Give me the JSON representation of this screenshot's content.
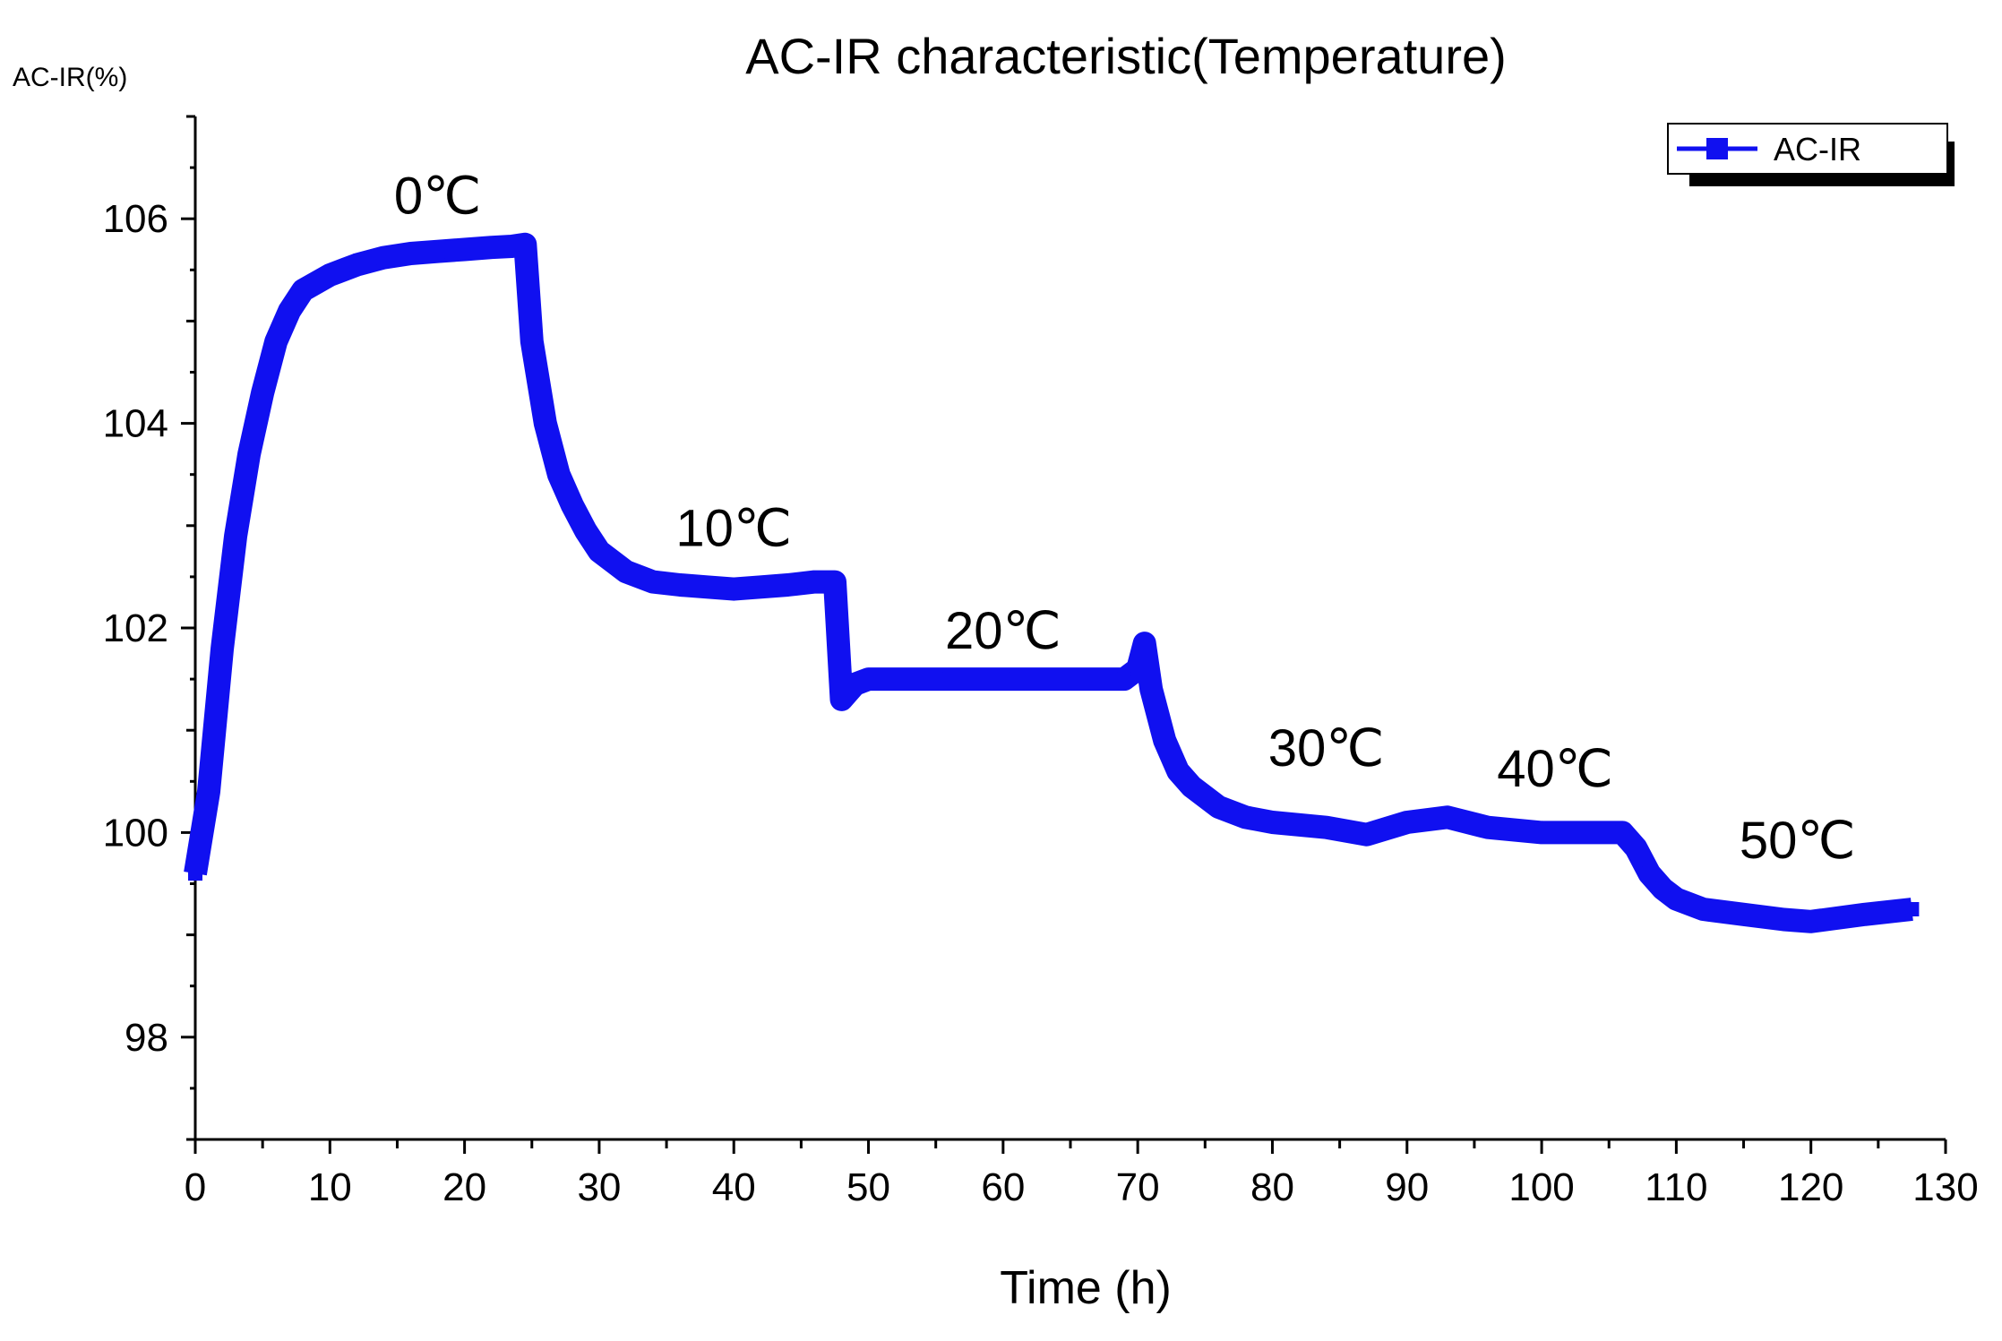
{
  "chart_data": {
    "type": "line",
    "title": "AC-IR characteristic(Temperature)",
    "xlabel": "Time (h)",
    "ylabel": "AC-IR(%)",
    "xlim": [
      0,
      130
    ],
    "ylim": [
      97,
      107
    ],
    "xticks": [
      0,
      10,
      20,
      30,
      40,
      50,
      60,
      70,
      80,
      90,
      100,
      110,
      120,
      130
    ],
    "yticks": [
      98,
      100,
      102,
      104,
      106
    ],
    "legend": {
      "position": "top-right",
      "entries": [
        "AC-IR"
      ]
    },
    "colors": {
      "series": "#1010f0",
      "axis": "#000000"
    },
    "series": [
      {
        "name": "AC-IR",
        "x": [
          0,
          1,
          2,
          3,
          4,
          5,
          6,
          7,
          8,
          10,
          12,
          14,
          16,
          18,
          20,
          22,
          23.5,
          24.5,
          25,
          26,
          27,
          28,
          29,
          30,
          32,
          34,
          36,
          38,
          40,
          42,
          44,
          46,
          47.5,
          48,
          49,
          50,
          55,
          60,
          65,
          69,
          70,
          70.5,
          71,
          72,
          73,
          74,
          76,
          78,
          80,
          84,
          87,
          90,
          93,
          96,
          100,
          104,
          106,
          107,
          108,
          109,
          110,
          112,
          115,
          118,
          120,
          124,
          127.5
        ],
        "values": [
          99.6,
          100.4,
          101.8,
          102.9,
          103.7,
          104.3,
          104.8,
          105.1,
          105.3,
          105.45,
          105.55,
          105.62,
          105.66,
          105.68,
          105.7,
          105.72,
          105.73,
          105.75,
          104.8,
          104.0,
          103.5,
          103.2,
          102.95,
          102.75,
          102.55,
          102.45,
          102.42,
          102.4,
          102.38,
          102.4,
          102.42,
          102.45,
          102.45,
          101.3,
          101.45,
          101.5,
          101.5,
          101.5,
          101.5,
          101.5,
          101.6,
          101.85,
          101.4,
          100.9,
          100.6,
          100.45,
          100.25,
          100.15,
          100.1,
          100.05,
          99.98,
          100.1,
          100.15,
          100.05,
          100.0,
          100.0,
          100.0,
          99.85,
          99.6,
          99.45,
          99.35,
          99.25,
          99.2,
          99.15,
          99.13,
          99.2,
          99.25
        ]
      }
    ],
    "annotations": [
      {
        "text": "0℃",
        "x": 18,
        "y": 106.05
      },
      {
        "text": "10℃",
        "x": 40,
        "y": 102.8
      },
      {
        "text": "20℃",
        "x": 60,
        "y": 101.8
      },
      {
        "text": "30℃",
        "x": 84,
        "y": 100.65
      },
      {
        "text": "40℃",
        "x": 101,
        "y": 100.45
      },
      {
        "text": "50℃",
        "x": 119,
        "y": 99.75
      }
    ]
  }
}
